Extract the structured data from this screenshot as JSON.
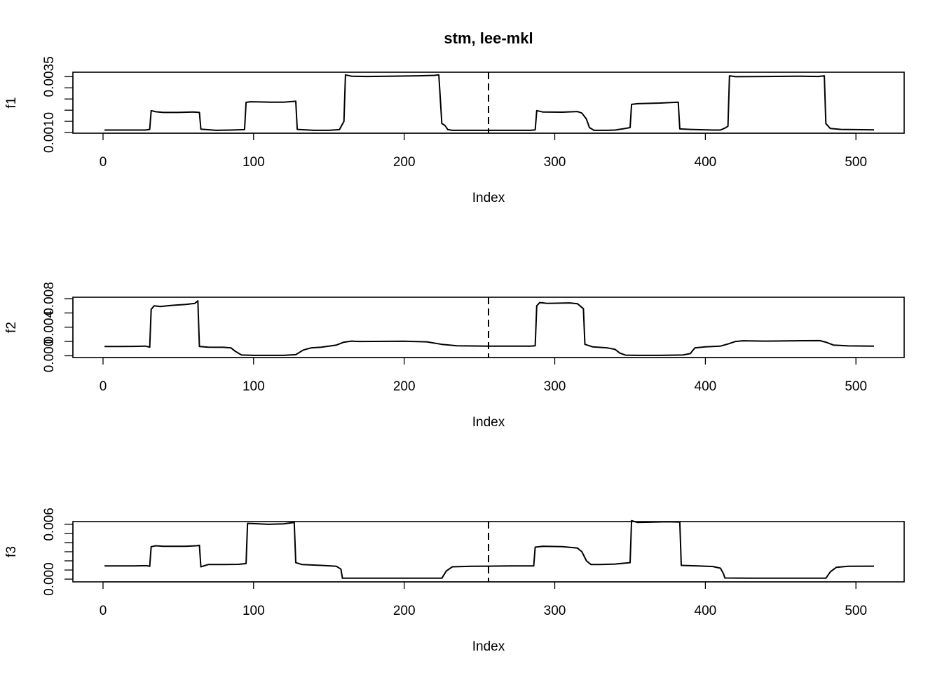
{
  "title": "stm, lee-mkl",
  "chart_data": [
    {
      "type": "line",
      "name": "f1",
      "title": "stm, lee-mkl",
      "xlabel": "Index",
      "ylabel": "f1",
      "xlim": [
        -20,
        532
      ],
      "ylim": [
        0.00097,
        0.0037
      ],
      "x_ticks": [
        0,
        100,
        200,
        300,
        400,
        500
      ],
      "y_ticks": [
        0.001,
        0.0015,
        0.002,
        0.0025,
        0.003,
        0.0035
      ],
      "y_tick_labels": [
        {
          "value": 0.001,
          "label": "0.0010"
        },
        {
          "value": 0.0035,
          "label": "0.0035"
        }
      ],
      "vline": 256,
      "points": [
        [
          1,
          0.00111
        ],
        [
          28,
          0.00111
        ],
        [
          31,
          0.00114
        ],
        [
          32,
          0.00198
        ],
        [
          35,
          0.00193
        ],
        [
          40,
          0.0019
        ],
        [
          50,
          0.0019
        ],
        [
          60,
          0.00192
        ],
        [
          64,
          0.0019
        ],
        [
          65,
          0.00115
        ],
        [
          75,
          0.0011
        ],
        [
          85,
          0.00111
        ],
        [
          94,
          0.00113
        ],
        [
          95,
          0.00235
        ],
        [
          98,
          0.00238
        ],
        [
          110,
          0.00236
        ],
        [
          120,
          0.00236
        ],
        [
          128,
          0.0024
        ],
        [
          129,
          0.00114
        ],
        [
          140,
          0.0011
        ],
        [
          150,
          0.0011
        ],
        [
          157,
          0.00113
        ],
        [
          160,
          0.0015
        ],
        [
          161,
          0.00358
        ],
        [
          165,
          0.00352
        ],
        [
          175,
          0.00351
        ],
        [
          190,
          0.00352
        ],
        [
          210,
          0.00354
        ],
        [
          220,
          0.00356
        ],
        [
          223,
          0.00358
        ],
        [
          225,
          0.0014
        ],
        [
          227,
          0.00132
        ],
        [
          229,
          0.00113
        ],
        [
          232,
          0.0011
        ],
        [
          250,
          0.0011
        ],
        [
          270,
          0.0011
        ],
        [
          284,
          0.0011
        ],
        [
          287,
          0.00112
        ],
        [
          288,
          0.00198
        ],
        [
          292,
          0.00192
        ],
        [
          305,
          0.00191
        ],
        [
          315,
          0.00194
        ],
        [
          318,
          0.00187
        ],
        [
          321,
          0.0016
        ],
        [
          323,
          0.00122
        ],
        [
          326,
          0.0011
        ],
        [
          335,
          0.0011
        ],
        [
          340,
          0.00111
        ],
        [
          345,
          0.00116
        ],
        [
          350,
          0.00122
        ],
        [
          351,
          0.00226
        ],
        [
          355,
          0.00229
        ],
        [
          370,
          0.00232
        ],
        [
          382,
          0.00236
        ],
        [
          383,
          0.00116
        ],
        [
          390,
          0.00114
        ],
        [
          405,
          0.00111
        ],
        [
          410,
          0.00111
        ],
        [
          413,
          0.0012
        ],
        [
          415,
          0.00128
        ],
        [
          416,
          0.00354
        ],
        [
          420,
          0.0035
        ],
        [
          440,
          0.00351
        ],
        [
          460,
          0.00352
        ],
        [
          475,
          0.00351
        ],
        [
          479,
          0.00354
        ],
        [
          480,
          0.0014
        ],
        [
          483,
          0.00118
        ],
        [
          490,
          0.00114
        ],
        [
          500,
          0.00113
        ],
        [
          512,
          0.00112
        ]
      ]
    },
    {
      "type": "line",
      "name": "f2",
      "xlabel": "Index",
      "ylabel": "f2",
      "xlim": [
        -20,
        532
      ],
      "ylim": [
        -0.00025,
        0.0082
      ],
      "x_ticks": [
        0,
        100,
        200,
        300,
        400,
        500
      ],
      "y_ticks": [
        0.0,
        0.002,
        0.004,
        0.006,
        0.008
      ],
      "y_tick_labels": [
        {
          "value": 0.0,
          "label": "0.000"
        },
        {
          "value": 0.004,
          "label": "0.004"
        },
        {
          "value": 0.008,
          "label": "0.008"
        }
      ],
      "vline": 256,
      "points": [
        [
          1,
          0.0013
        ],
        [
          10,
          0.0013
        ],
        [
          20,
          0.00131
        ],
        [
          28,
          0.00135
        ],
        [
          31,
          0.0012
        ],
        [
          32,
          0.0065
        ],
        [
          34,
          0.007
        ],
        [
          38,
          0.0069
        ],
        [
          45,
          0.00705
        ],
        [
          55,
          0.0072
        ],
        [
          61,
          0.00735
        ],
        [
          63,
          0.0077
        ],
        [
          64,
          0.0013
        ],
        [
          70,
          0.0012
        ],
        [
          80,
          0.00118
        ],
        [
          85,
          0.0011
        ],
        [
          88,
          0.0006
        ],
        [
          92,
          0.0001
        ],
        [
          100,
          5e-05
        ],
        [
          110,
          5e-05
        ],
        [
          120,
          5e-05
        ],
        [
          128,
          0.00015
        ],
        [
          133,
          0.0008
        ],
        [
          138,
          0.0011
        ],
        [
          145,
          0.0012
        ],
        [
          155,
          0.0015
        ],
        [
          160,
          0.0019
        ],
        [
          165,
          0.00205
        ],
        [
          170,
          0.002
        ],
        [
          190,
          0.00202
        ],
        [
          200,
          0.00203
        ],
        [
          215,
          0.00195
        ],
        [
          225,
          0.0016
        ],
        [
          235,
          0.0014
        ],
        [
          256,
          0.00135
        ],
        [
          270,
          0.00135
        ],
        [
          284,
          0.00135
        ],
        [
          287,
          0.0014
        ],
        [
          288,
          0.007
        ],
        [
          290,
          0.00745
        ],
        [
          295,
          0.00735
        ],
        [
          310,
          0.0074
        ],
        [
          315,
          0.0073
        ],
        [
          319,
          0.0066
        ],
        [
          320,
          0.0016
        ],
        [
          325,
          0.00125
        ],
        [
          335,
          0.0011
        ],
        [
          340,
          0.0009
        ],
        [
          343,
          0.0004
        ],
        [
          347,
          8e-05
        ],
        [
          355,
          5e-05
        ],
        [
          370,
          5e-05
        ],
        [
          385,
          0.0001
        ],
        [
          390,
          0.0003
        ],
        [
          393,
          0.0011
        ],
        [
          400,
          0.00125
        ],
        [
          410,
          0.00135
        ],
        [
          415,
          0.00165
        ],
        [
          420,
          0.002
        ],
        [
          425,
          0.0021
        ],
        [
          440,
          0.00205
        ],
        [
          460,
          0.0021
        ],
        [
          476,
          0.00212
        ],
        [
          480,
          0.0019
        ],
        [
          485,
          0.0015
        ],
        [
          495,
          0.00138
        ],
        [
          512,
          0.00135
        ]
      ]
    },
    {
      "type": "line",
      "name": "f3",
      "xlabel": "Index",
      "ylabel": "f3",
      "xlim": [
        -20,
        532
      ],
      "ylim": [
        -0.0003,
        0.0063
      ],
      "x_ticks": [
        0,
        100,
        200,
        300,
        400,
        500
      ],
      "y_ticks": [
        0.0,
        0.001,
        0.002,
        0.003,
        0.004,
        0.005,
        0.006
      ],
      "y_tick_labels": [
        {
          "value": 0.0,
          "label": "0.000"
        },
        {
          "value": 0.006,
          "label": "0.006"
        }
      ],
      "vline": 256,
      "points": [
        [
          1,
          0.00145
        ],
        [
          20,
          0.00145
        ],
        [
          29,
          0.00147
        ],
        [
          31,
          0.0014
        ],
        [
          32,
          0.00355
        ],
        [
          35,
          0.00365
        ],
        [
          40,
          0.0036
        ],
        [
          55,
          0.0036
        ],
        [
          62,
          0.00365
        ],
        [
          64,
          0.0037
        ],
        [
          65,
          0.00135
        ],
        [
          70,
          0.0016
        ],
        [
          80,
          0.0016
        ],
        [
          90,
          0.00162
        ],
        [
          95,
          0.0017
        ],
        [
          96,
          0.0061
        ],
        [
          100,
          0.00608
        ],
        [
          110,
          0.006
        ],
        [
          120,
          0.00605
        ],
        [
          127,
          0.0062
        ],
        [
          128,
          0.0018
        ],
        [
          132,
          0.0016
        ],
        [
          145,
          0.0015
        ],
        [
          155,
          0.0014
        ],
        [
          158,
          0.0011
        ],
        [
          159,
          0.0001
        ],
        [
          170,
          0.0001
        ],
        [
          200,
          0.0001
        ],
        [
          225,
          0.0001
        ],
        [
          228,
          0.0009
        ],
        [
          232,
          0.00135
        ],
        [
          245,
          0.0014
        ],
        [
          256,
          0.00142
        ],
        [
          270,
          0.00145
        ],
        [
          286,
          0.00145
        ],
        [
          287,
          0.0035
        ],
        [
          292,
          0.0036
        ],
        [
          305,
          0.00355
        ],
        [
          315,
          0.0034
        ],
        [
          318,
          0.003
        ],
        [
          321,
          0.002
        ],
        [
          324,
          0.0016
        ],
        [
          330,
          0.0016
        ],
        [
          340,
          0.00165
        ],
        [
          350,
          0.0018
        ],
        [
          351,
          0.0064
        ],
        [
          355,
          0.0062
        ],
        [
          365,
          0.00625
        ],
        [
          375,
          0.00628
        ],
        [
          383,
          0.00625
        ],
        [
          384,
          0.0015
        ],
        [
          395,
          0.00145
        ],
        [
          405,
          0.00138
        ],
        [
          410,
          0.0012
        ],
        [
          412,
          0.0006
        ],
        [
          413,
          0.00012
        ],
        [
          430,
          0.0001
        ],
        [
          460,
          0.0001
        ],
        [
          480,
          0.0001
        ],
        [
          483,
          0.0008
        ],
        [
          487,
          0.0013
        ],
        [
          495,
          0.0014
        ],
        [
          512,
          0.00142
        ]
      ]
    }
  ]
}
